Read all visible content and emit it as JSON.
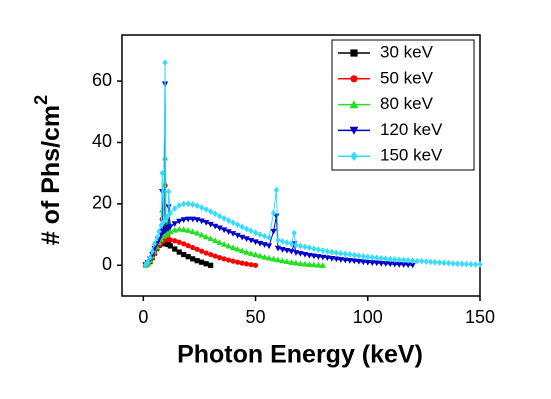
{
  "chart_data": {
    "type": "line",
    "xlabel": "Photon Energy (keV)",
    "ylabel": "# of Phs/cm",
    "ylabel_superscript": "2",
    "xlim": [
      -9.5,
      150
    ],
    "ylim": [
      -10,
      75
    ],
    "xticks": [
      0,
      50,
      100,
      150
    ],
    "yticks": [
      0,
      20,
      40,
      60
    ],
    "legend": "upper-right",
    "series": [
      {
        "name": "30 keV",
        "color": "#000000",
        "marker": "square",
        "x": [
          1,
          2,
          3,
          4,
          5,
          6,
          7,
          8,
          8.4,
          9,
          9.7,
          10,
          11,
          11.3,
          12,
          14,
          16,
          18,
          20,
          22,
          24,
          26,
          28,
          30
        ],
        "values": [
          0.1,
          0.5,
          1.2,
          2.5,
          4,
          5.5,
          6.5,
          7,
          11,
          7.2,
          13,
          7,
          6.8,
          8,
          6.3,
          5.3,
          4.3,
          3.5,
          2.8,
          2.1,
          1.5,
          1,
          0.5,
          0
        ]
      },
      {
        "name": "50 keV",
        "color": "#ff0000",
        "marker": "circle",
        "x": [
          1,
          2,
          3,
          4,
          5,
          6,
          7,
          8,
          8.4,
          9,
          9.7,
          10,
          11,
          11.3,
          12,
          14,
          16,
          18,
          20,
          22,
          24,
          26,
          28,
          30,
          32,
          34,
          36,
          38,
          40,
          42,
          44,
          46,
          48,
          50
        ],
        "values": [
          0.1,
          0.5,
          1.3,
          2.5,
          4,
          5.5,
          6.5,
          7.5,
          15,
          8,
          26,
          8.3,
          8.4,
          11,
          8.3,
          8,
          7.5,
          7,
          6.4,
          5.8,
          5.2,
          4.6,
          4,
          3.5,
          3,
          2.5,
          2.1,
          1.7,
          1.35,
          1,
          0.7,
          0.45,
          0.2,
          0
        ]
      },
      {
        "name": "80 keV",
        "color": "#22e022",
        "marker": "triangle-up",
        "x": [
          1,
          2,
          3,
          4,
          5,
          6,
          7,
          8,
          8.4,
          9,
          9.7,
          10,
          11,
          11.3,
          12,
          14,
          16,
          18,
          20,
          22,
          24,
          26,
          28,
          30,
          32,
          34,
          36,
          38,
          40,
          42,
          44,
          46,
          48,
          50,
          52,
          54,
          56,
          58,
          60,
          62,
          64,
          66,
          68,
          70,
          72,
          74,
          76,
          78,
          80
        ],
        "values": [
          0.1,
          0.6,
          1.5,
          3,
          4.5,
          6,
          7.5,
          8.5,
          18,
          9.5,
          35,
          10,
          10.5,
          14,
          11,
          11.5,
          11.8,
          11.7,
          11.4,
          11,
          10.5,
          9.9,
          9.3,
          8.7,
          8.1,
          7.5,
          6.9,
          6.3,
          5.8,
          5.3,
          4.8,
          4.3,
          3.9,
          3.5,
          3.1,
          2.7,
          2.4,
          2.1,
          1.8,
          1.5,
          1.25,
          1,
          0.8,
          0.6,
          0.45,
          0.3,
          0.2,
          0.1,
          0
        ]
      },
      {
        "name": "120 keV",
        "color": "#0000cc",
        "marker": "triangle-down",
        "x": [
          1,
          2,
          3,
          4,
          5,
          6,
          7,
          8,
          8.4,
          9,
          9.7,
          10,
          11,
          11.3,
          12,
          14,
          16,
          18,
          20,
          22,
          24,
          26,
          28,
          30,
          32,
          34,
          36,
          38,
          40,
          42,
          44,
          46,
          48,
          50,
          52,
          54,
          56,
          58,
          59.3,
          60,
          62,
          64,
          66,
          67.2,
          68,
          70,
          72,
          74,
          76,
          78,
          80,
          82,
          84,
          86,
          88,
          90,
          92,
          94,
          96,
          98,
          100,
          102,
          104,
          106,
          108,
          110,
          112,
          114,
          116,
          118,
          120
        ],
        "values": [
          0.1,
          0.8,
          2,
          3.5,
          5.5,
          7,
          8.5,
          10,
          24,
          11,
          59,
          11.5,
          12,
          19,
          12.5,
          13.5,
          14.3,
          14.8,
          15,
          15,
          14.8,
          14.4,
          13.9,
          13.3,
          12.7,
          12.1,
          11.5,
          10.9,
          10.3,
          9.7,
          9.1,
          8.6,
          8.1,
          7.6,
          7.1,
          6.7,
          6.3,
          11,
          16,
          5.5,
          5.1,
          4.8,
          4.5,
          7,
          4.1,
          3.8,
          3.5,
          3.2,
          3,
          2.8,
          2.6,
          2.4,
          2.2,
          2,
          1.8,
          1.65,
          1.5,
          1.35,
          1.2,
          1.05,
          0.9,
          0.8,
          0.7,
          0.6,
          0.5,
          0.4,
          0.3,
          0.22,
          0.15,
          0.08,
          0
        ]
      },
      {
        "name": "150 keV",
        "color": "#33ddff",
        "marker": "diamond",
        "x": [
          1,
          2,
          3,
          4,
          5,
          6,
          7,
          8,
          8.4,
          9,
          9.7,
          10,
          11,
          11.3,
          12,
          14,
          16,
          18,
          20,
          22,
          24,
          26,
          28,
          30,
          32,
          34,
          36,
          38,
          40,
          42,
          44,
          46,
          48,
          50,
          52,
          54,
          56,
          58,
          59.3,
          60,
          62,
          64,
          66,
          67.2,
          68,
          70,
          72,
          74,
          76,
          78,
          80,
          82,
          84,
          86,
          88,
          90,
          92,
          94,
          96,
          98,
          100,
          102,
          104,
          106,
          108,
          110,
          112,
          114,
          116,
          118,
          120,
          122,
          124,
          126,
          128,
          130,
          132,
          134,
          136,
          138,
          140,
          142,
          144,
          146,
          148,
          150
        ],
        "values": [
          0.2,
          1,
          2.5,
          4.5,
          7,
          9,
          11,
          13,
          30,
          14,
          66,
          15,
          16,
          24,
          17,
          18.5,
          19.5,
          20,
          20,
          19.8,
          19.4,
          18.8,
          18.2,
          17.5,
          16.8,
          16,
          15.3,
          14.6,
          13.9,
          13.2,
          12.5,
          11.8,
          11.2,
          10.6,
          10,
          9.5,
          9,
          17,
          24.5,
          8.2,
          7.8,
          7.4,
          7,
          10.5,
          6.6,
          6.3,
          6,
          5.7,
          5.4,
          5.1,
          4.8,
          4.5,
          4.3,
          4.1,
          3.9,
          3.7,
          3.5,
          3.3,
          3.1,
          2.9,
          2.75,
          2.6,
          2.45,
          2.3,
          2.15,
          2,
          1.9,
          1.8,
          1.7,
          1.6,
          1.5,
          1.4,
          1.3,
          1.2,
          1.1,
          1,
          0.9,
          0.8,
          0.7,
          0.6,
          0.5,
          0.45,
          0.4,
          0.35,
          0.3,
          0.25
        ]
      }
    ]
  }
}
